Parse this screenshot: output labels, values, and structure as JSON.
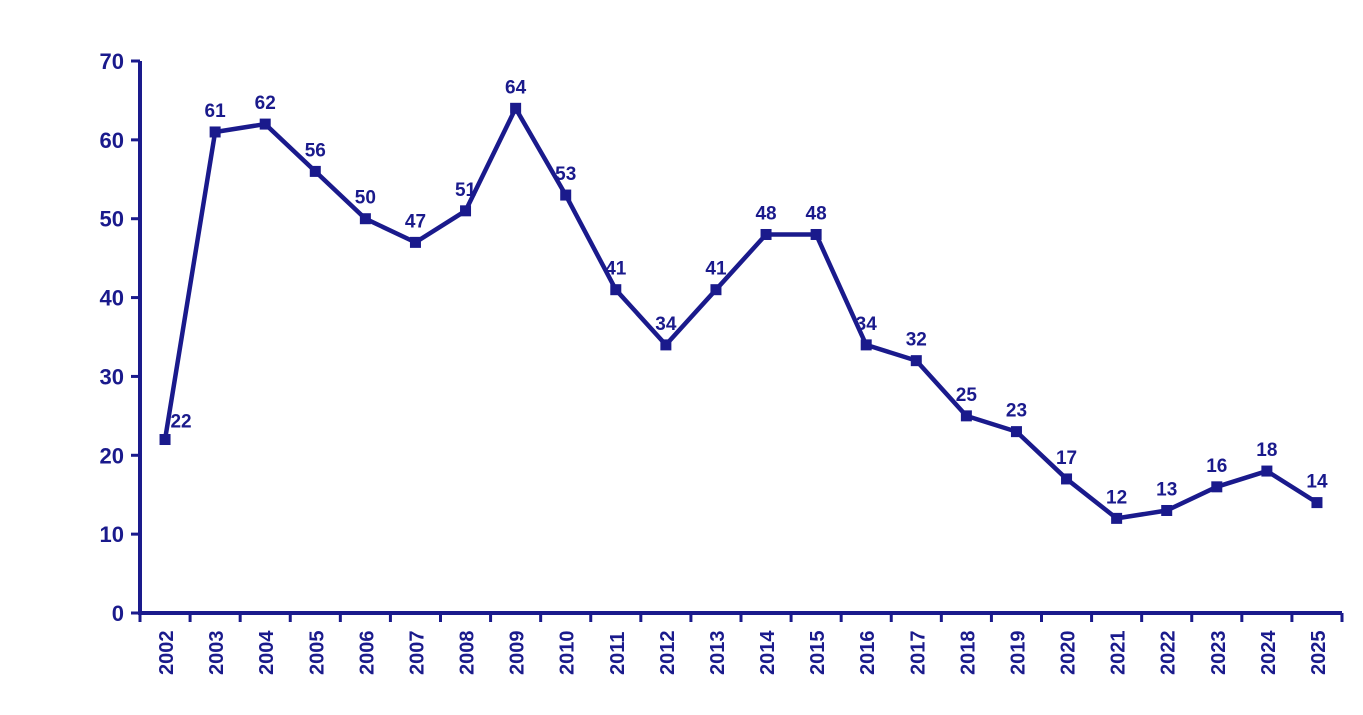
{
  "chart_data": {
    "type": "line",
    "title": "",
    "xlabel": "",
    "ylabel": "",
    "categories": [
      "2002",
      "2003",
      "2004",
      "2005",
      "2006",
      "2007",
      "2008",
      "2009",
      "2010",
      "2011",
      "2012",
      "2013",
      "2014",
      "2015",
      "2016",
      "2017",
      "2018",
      "2019",
      "2020",
      "2021",
      "2022",
      "2023",
      "2024",
      "2025"
    ],
    "series": [
      {
        "name": "values",
        "values": [
          22,
          61,
          62,
          56,
          50,
          47,
          51,
          64,
          53,
          41,
          34,
          41,
          48,
          48,
          34,
          32,
          25,
          23,
          17,
          12,
          13,
          16,
          18,
          14
        ]
      }
    ],
    "data_labels": [
      "22",
      "61",
      "62",
      "56",
      "50",
      "47",
      "51",
      "64",
      "53",
      "41",
      "34",
      "41",
      "48",
      "48",
      "34",
      "32",
      "25",
      "23",
      "17",
      "12",
      "13",
      "16",
      "18",
      "14"
    ],
    "ylim": [
      0,
      70
    ],
    "yticks": [
      0,
      10,
      20,
      30,
      40,
      50,
      60,
      70
    ],
    "grid": false,
    "legend": "none",
    "marker_shape": "square",
    "colors": {
      "line": "#1a1a8c",
      "marker": "#1a1a8c",
      "text": "#1a1a8c",
      "axis": "#1a1a8c",
      "background": "#ffffff"
    }
  }
}
